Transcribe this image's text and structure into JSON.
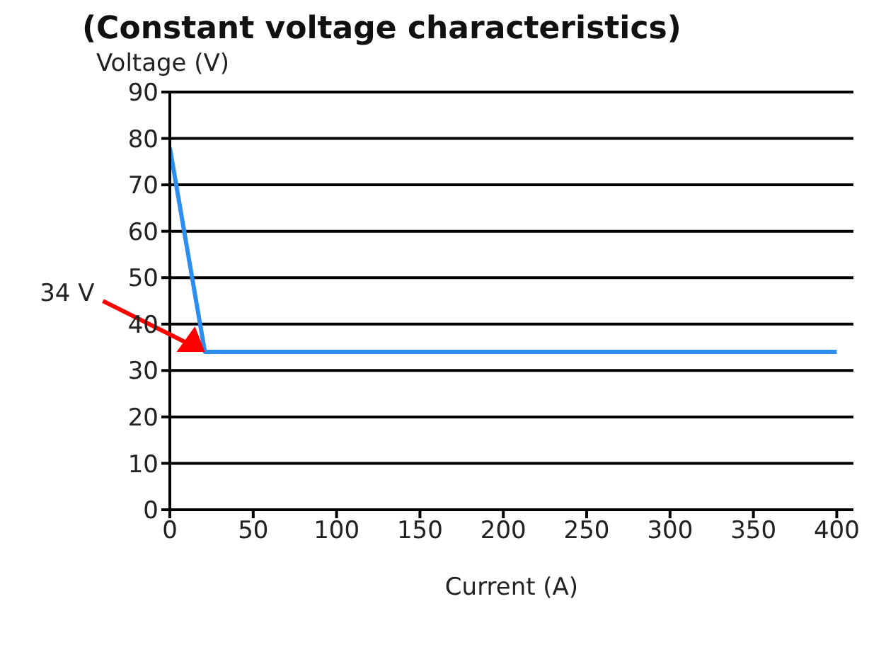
{
  "chart_data": {
    "type": "line",
    "title": "(Constant voltage characteristics)",
    "xlabel": "Current (A)",
    "ylabel": "Voltage (V)",
    "x": [
      0,
      21,
      400
    ],
    "series": [
      {
        "color": "#2b8ef0",
        "values": [
          78,
          34,
          34
        ]
      }
    ],
    "xlim": [
      0,
      410
    ],
    "xticks": [
      0,
      50,
      100,
      150,
      200,
      250,
      300,
      350,
      400
    ],
    "ylim": [
      0,
      90
    ],
    "yticks": [
      0,
      10,
      20,
      30,
      40,
      50,
      60,
      70,
      80,
      90
    ],
    "grid": "y",
    "legend": false,
    "marker": "none",
    "line_style": "solid",
    "annotations": [
      "34 V"
    ]
  }
}
